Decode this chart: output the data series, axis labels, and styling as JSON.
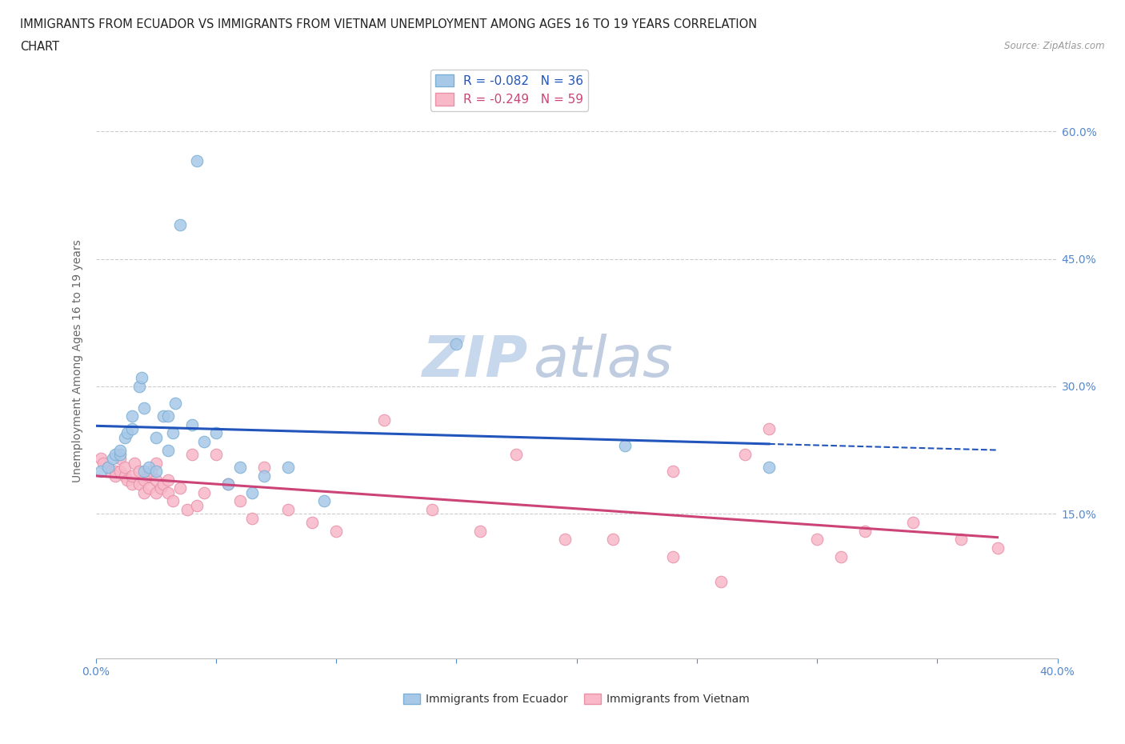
{
  "title_line1": "IMMIGRANTS FROM ECUADOR VS IMMIGRANTS FROM VIETNAM UNEMPLOYMENT AMONG AGES 16 TO 19 YEARS CORRELATION",
  "title_line2": "CHART",
  "source": "Source: ZipAtlas.com",
  "ylabel": "Unemployment Among Ages 16 to 19 years",
  "xlim": [
    0.0,
    0.4
  ],
  "ylim": [
    -0.02,
    0.68
  ],
  "ecuador_color": "#a8c8e8",
  "ecuador_edge": "#7bafd4",
  "vietnam_color": "#f8b8c8",
  "vietnam_edge": "#e890a8",
  "ecuador_line_color": "#2255bb",
  "vietnam_line_color": "#cc4477",
  "ecuador_R": -0.082,
  "ecuador_N": 36,
  "vietnam_R": -0.249,
  "vietnam_N": 59,
  "legend_ecuador_label": "Immigrants from Ecuador",
  "legend_vietnam_label": "Immigrants from Vietnam",
  "ecuador_x": [
    0.002,
    0.005,
    0.007,
    0.008,
    0.01,
    0.01,
    0.012,
    0.013,
    0.015,
    0.015,
    0.018,
    0.019,
    0.02,
    0.02,
    0.022,
    0.025,
    0.025,
    0.028,
    0.03,
    0.03,
    0.032,
    0.033,
    0.035,
    0.04,
    0.042,
    0.045,
    0.05,
    0.055,
    0.06,
    0.065,
    0.07,
    0.08,
    0.095,
    0.15,
    0.22,
    0.28
  ],
  "ecuador_y": [
    0.2,
    0.205,
    0.215,
    0.22,
    0.22,
    0.225,
    0.24,
    0.245,
    0.25,
    0.265,
    0.3,
    0.31,
    0.2,
    0.275,
    0.205,
    0.2,
    0.24,
    0.265,
    0.225,
    0.265,
    0.245,
    0.28,
    0.49,
    0.255,
    0.565,
    0.235,
    0.245,
    0.185,
    0.205,
    0.175,
    0.195,
    0.205,
    0.165,
    0.35,
    0.23,
    0.205
  ],
  "vietnam_x": [
    0.002,
    0.003,
    0.005,
    0.006,
    0.008,
    0.008,
    0.01,
    0.01,
    0.012,
    0.012,
    0.013,
    0.015,
    0.015,
    0.016,
    0.018,
    0.018,
    0.02,
    0.02,
    0.022,
    0.022,
    0.023,
    0.025,
    0.025,
    0.025,
    0.027,
    0.028,
    0.03,
    0.03,
    0.032,
    0.035,
    0.038,
    0.04,
    0.042,
    0.045,
    0.05,
    0.055,
    0.06,
    0.065,
    0.07,
    0.08,
    0.09,
    0.1,
    0.12,
    0.14,
    0.16,
    0.175,
    0.195,
    0.215,
    0.24,
    0.26,
    0.28,
    0.3,
    0.32,
    0.34,
    0.36,
    0.375,
    0.24,
    0.27,
    0.31
  ],
  "vietnam_y": [
    0.215,
    0.21,
    0.205,
    0.2,
    0.2,
    0.195,
    0.2,
    0.215,
    0.195,
    0.205,
    0.19,
    0.185,
    0.195,
    0.21,
    0.185,
    0.2,
    0.175,
    0.19,
    0.18,
    0.195,
    0.2,
    0.175,
    0.19,
    0.21,
    0.18,
    0.185,
    0.175,
    0.19,
    0.165,
    0.18,
    0.155,
    0.22,
    0.16,
    0.175,
    0.22,
    0.185,
    0.165,
    0.145,
    0.205,
    0.155,
    0.14,
    0.13,
    0.26,
    0.155,
    0.13,
    0.22,
    0.12,
    0.12,
    0.1,
    0.07,
    0.25,
    0.12,
    0.13,
    0.14,
    0.12,
    0.11,
    0.2,
    0.22,
    0.1
  ],
  "background_color": "#ffffff",
  "grid_color": "#cccccc",
  "watermark_zip": "ZIP",
  "watermark_atlas": "atlas",
  "watermark_color_zip": "#c8d8ec",
  "watermark_color_atlas": "#c0cce0",
  "tick_color": "#5588cc",
  "axis_label_color": "#666666",
  "yticks": [
    0.15,
    0.3,
    0.45,
    0.6
  ],
  "ytick_labels": [
    "15.0%",
    "30.0%",
    "45.0%",
    "60.0%"
  ]
}
